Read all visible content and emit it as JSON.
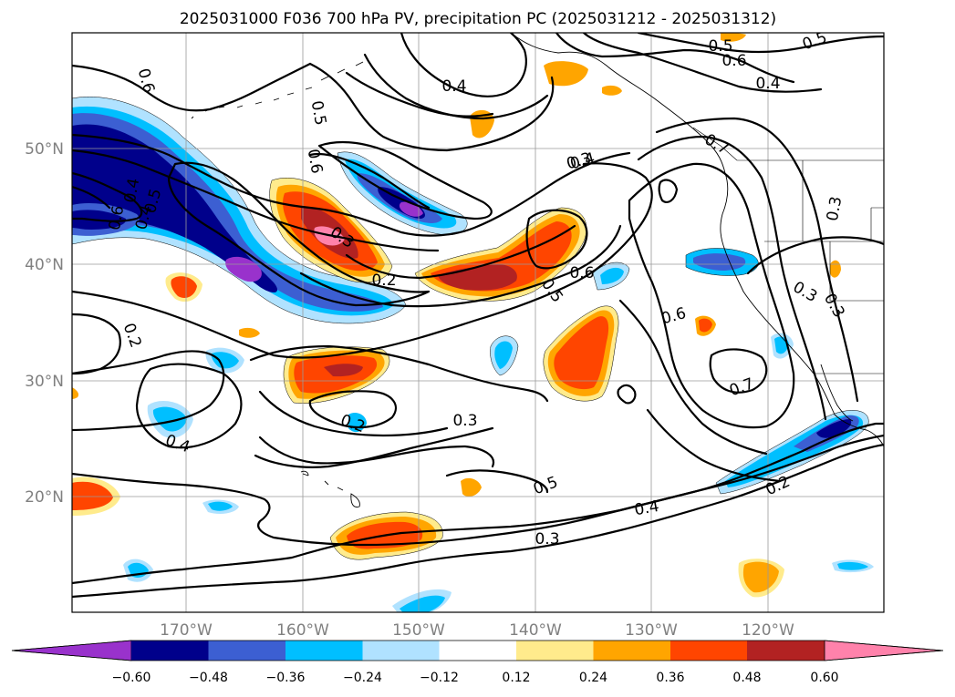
{
  "title": "2025031000 F036 700 hPa PV, precipitation PC (2025031212 - 2025031312)",
  "map": {
    "lon_labels": [
      "170°W",
      "160°W",
      "150°W",
      "140°W",
      "130°W",
      "120°W"
    ],
    "lat_labels": [
      "50°N",
      "40°N",
      "30°N",
      "20°N"
    ]
  },
  "colors": {
    "neg_060": "#9932cc",
    "neg_048": "#00008b",
    "neg_036": "#3c5fd2",
    "neg_024": "#00bfff",
    "neg_012": "#b0e2ff",
    "neutral": "#ffffff",
    "pos_012": "#ffeb8c",
    "pos_024": "#ffa500",
    "pos_036": "#ff4500",
    "pos_048": "#b22222",
    "pos_060": "#ff82ab"
  },
  "contour_labels": [
    {
      "id": "l1",
      "text": "0.6"
    },
    {
      "id": "l2",
      "text": "0.5"
    },
    {
      "id": "l3",
      "text": "0.4"
    },
    {
      "id": "l4",
      "text": "0.6"
    },
    {
      "id": "l5",
      "text": "0.4"
    },
    {
      "id": "l6",
      "text": "0.6"
    },
    {
      "id": "l7",
      "text": "0.5"
    },
    {
      "id": "l8",
      "text": "0.4"
    },
    {
      "id": "l9",
      "text": "0.3"
    },
    {
      "id": "l10",
      "text": "0.4"
    },
    {
      "id": "l11",
      "text": "0.3"
    },
    {
      "id": "l12",
      "text": "0.2"
    },
    {
      "id": "l13",
      "text": "0.5"
    },
    {
      "id": "l14",
      "text": "0.6"
    },
    {
      "id": "l15",
      "text": "0.6"
    },
    {
      "id": "l16",
      "text": "0.2"
    },
    {
      "id": "l17",
      "text": "0.3"
    },
    {
      "id": "l18",
      "text": "0.5"
    },
    {
      "id": "l19",
      "text": "0.7"
    },
    {
      "id": "l20",
      "text": "0.3"
    },
    {
      "id": "l21",
      "text": "0.3"
    },
    {
      "id": "l22",
      "text": "0.2"
    },
    {
      "id": "l23",
      "text": "0.4"
    },
    {
      "id": "l24",
      "text": "0.5"
    },
    {
      "id": "l25",
      "text": "0.4"
    },
    {
      "id": "l26",
      "text": "0.3"
    },
    {
      "id": "l27",
      "text": "0.2"
    },
    {
      "id": "l28",
      "text": "0.4"
    },
    {
      "id": "l29",
      "text": "0.7"
    },
    {
      "id": "l30",
      "text": "0.6"
    },
    {
      "id": "l31",
      "text": "0.5"
    },
    {
      "id": "l32",
      "text": "0.3"
    }
  ],
  "colorbar": {
    "ticks": [
      "−0.60",
      "−0.48",
      "−0.36",
      "−0.24",
      "−0.12",
      "0.12",
      "0.24",
      "0.36",
      "0.48",
      "0.60"
    ]
  }
}
